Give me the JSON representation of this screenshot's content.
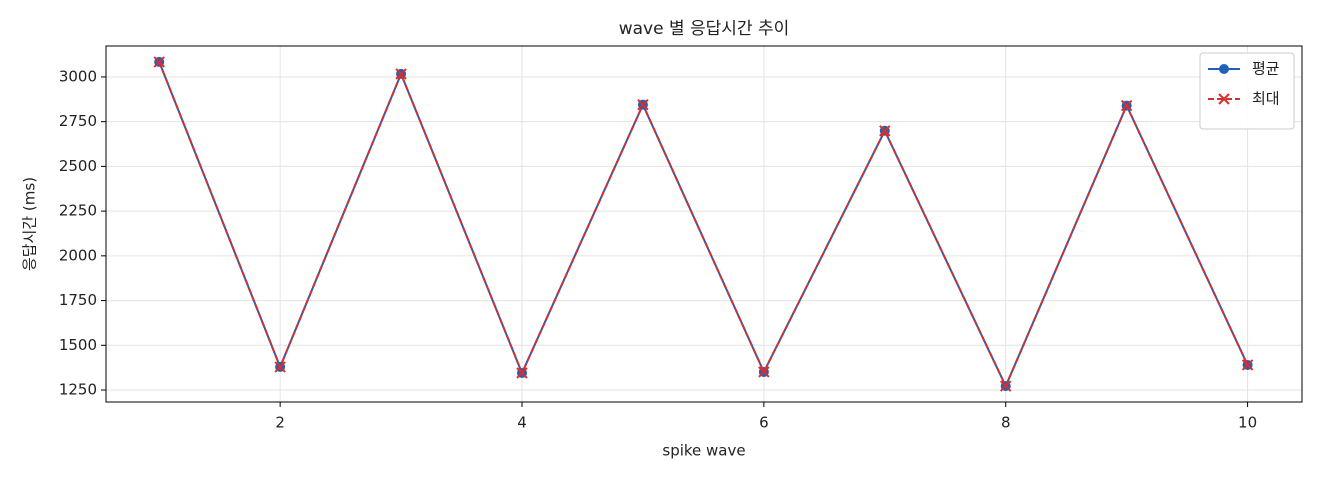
{
  "chart_data": {
    "type": "line",
    "title": "wave 별 응답시간 추이",
    "x_label": "spike wave",
    "y_label": "응답시간 (ms)",
    "x": [
      1,
      2,
      3,
      4,
      5,
      6,
      7,
      8,
      9,
      10
    ],
    "series": [
      {
        "name": "평균",
        "color": "#1f62b8",
        "marker": "o",
        "linestyle": "solid",
        "values": [
          3084,
          1379,
          3017,
          1345,
          2845,
          1351,
          2699,
          1272,
          2840,
          1390
        ]
      },
      {
        "name": "최대",
        "color": "#d62f2f",
        "marker": "x",
        "linestyle": "dashed",
        "values": [
          3084,
          1379,
          3017,
          1345,
          2845,
          1351,
          2699,
          1272,
          2840,
          1390
        ]
      }
    ],
    "xlim": [
      0.56,
      10.45
    ],
    "ylim": [
      1183,
      3173
    ],
    "xticks": [
      2,
      4,
      6,
      8,
      10
    ],
    "yticks": [
      1250,
      1500,
      1750,
      2000,
      2250,
      2500,
      2750,
      3000
    ],
    "grid": true,
    "legend": "upper right"
  }
}
